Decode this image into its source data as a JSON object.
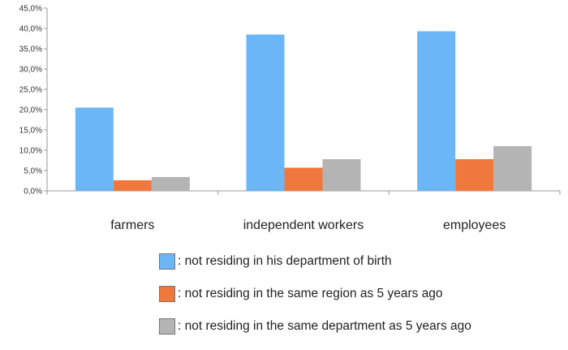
{
  "chart_data": {
    "type": "bar",
    "categories": [
      "farmers",
      "independent workers",
      "employees"
    ],
    "series": [
      {
        "name": ": not residing in his department of birth",
        "values": [
          20.5,
          38.5,
          39.3
        ],
        "color": "#6bb6f7"
      },
      {
        "name": ": not residing in the same region as 5 years ago",
        "values": [
          2.6,
          5.7,
          7.8
        ],
        "color": "#f0783c"
      },
      {
        "name": ": not residing in the same department as 5 years ago",
        "values": [
          3.4,
          7.8,
          11.0
        ],
        "color": "#b4b4b4"
      }
    ],
    "y_ticks": [
      "0,0%",
      "5,0%",
      "10,0%",
      "15,0%",
      "20,0%",
      "25,0%",
      "30,0%",
      "35,0%",
      "40,0%",
      "45,0%"
    ],
    "ylim": [
      0,
      45
    ],
    "grid": false,
    "legend_position": "bottom"
  }
}
